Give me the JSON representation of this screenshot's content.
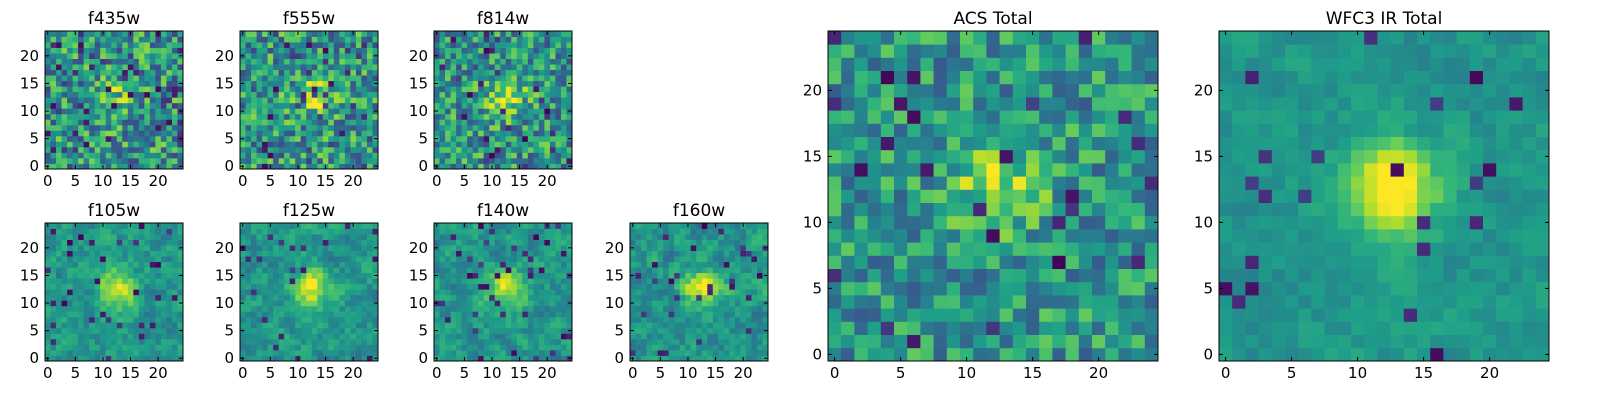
{
  "chart_data": {
    "type": "heatmap",
    "colormap": "viridis",
    "grid_size": 25,
    "panels": [
      {
        "id": "f435w",
        "title": "f435w",
        "x_ticks": [
          0,
          5,
          10,
          15,
          20
        ],
        "y_ticks": [
          0,
          5,
          10,
          15,
          20
        ],
        "xlim": [
          -0.5,
          24.5
        ],
        "ylim": [
          -0.5,
          24.5
        ],
        "noise": 0.28,
        "blob": 0.2,
        "dark_fraction": 0.07
      },
      {
        "id": "f555w",
        "title": "f555w",
        "x_ticks": [
          0,
          5,
          10,
          15,
          20
        ],
        "y_ticks": [
          0,
          5,
          10,
          15,
          20
        ],
        "xlim": [
          -0.5,
          24.5
        ],
        "ylim": [
          -0.5,
          24.5
        ],
        "noise": 0.28,
        "blob": 0.3,
        "dark_fraction": 0.06
      },
      {
        "id": "f814w",
        "title": "f814w",
        "x_ticks": [
          0,
          5,
          10,
          15,
          20
        ],
        "y_ticks": [
          0,
          5,
          10,
          15,
          20
        ],
        "xlim": [
          -0.5,
          24.5
        ],
        "ylim": [
          -0.5,
          24.5
        ],
        "noise": 0.26,
        "blob": 0.38,
        "dark_fraction": 0.05
      },
      {
        "id": "f105w",
        "title": "f105w",
        "x_ticks": [
          0,
          5,
          10,
          15,
          20
        ],
        "y_ticks": [
          0,
          5,
          10,
          15,
          20
        ],
        "xlim": [
          -0.5,
          24.5
        ],
        "ylim": [
          -0.5,
          24.5
        ],
        "noise": 0.2,
        "blob": 0.42,
        "dark_fraction": 0.05
      },
      {
        "id": "f125w",
        "title": "f125w",
        "x_ticks": [
          0,
          5,
          10,
          15,
          20
        ],
        "y_ticks": [
          0,
          5,
          10,
          15,
          20
        ],
        "xlim": [
          -0.5,
          24.5
        ],
        "ylim": [
          -0.5,
          24.5
        ],
        "noise": 0.2,
        "blob": 0.45,
        "dark_fraction": 0.04
      },
      {
        "id": "f140w",
        "title": "f140w",
        "x_ticks": [
          0,
          5,
          10,
          15,
          20
        ],
        "y_ticks": [
          0,
          5,
          10,
          15,
          20
        ],
        "xlim": [
          -0.5,
          24.5
        ],
        "ylim": [
          -0.5,
          24.5
        ],
        "noise": 0.2,
        "blob": 0.42,
        "dark_fraction": 0.05
      },
      {
        "id": "f160w",
        "title": "f160w",
        "x_ticks": [
          0,
          5,
          10,
          15,
          20
        ],
        "y_ticks": [
          0,
          5,
          10,
          15,
          20
        ],
        "xlim": [
          -0.5,
          24.5
        ],
        "ylim": [
          -0.5,
          24.5
        ],
        "noise": 0.2,
        "blob": 0.45,
        "dark_fraction": 0.05
      },
      {
        "id": "acs_total",
        "title": "ACS Total",
        "x_ticks": [
          0,
          5,
          10,
          15,
          20
        ],
        "y_ticks": [
          0,
          5,
          10,
          15,
          20
        ],
        "xlim": [
          -0.5,
          24.5
        ],
        "ylim": [
          -0.5,
          24.5
        ],
        "noise": 0.22,
        "blob": 0.35,
        "dark_fraction": 0.05
      },
      {
        "id": "wfc3_ir_total",
        "title": "WFC3 IR Total",
        "x_ticks": [
          0,
          5,
          10,
          15,
          20
        ],
        "y_ticks": [
          0,
          5,
          10,
          15,
          20
        ],
        "xlim": [
          -0.5,
          24.5
        ],
        "ylim": [
          -0.5,
          24.5
        ],
        "noise": 0.12,
        "blob": 0.55,
        "dark_fraction": 0.03
      }
    ]
  },
  "colors": {
    "viridis": [
      "#440154",
      "#482878",
      "#3e4989",
      "#31688e",
      "#26828e",
      "#1f9e89",
      "#35b779",
      "#6ece58",
      "#b5de2b",
      "#fde725"
    ],
    "axes": "#000000",
    "background": "#ffffff"
  }
}
